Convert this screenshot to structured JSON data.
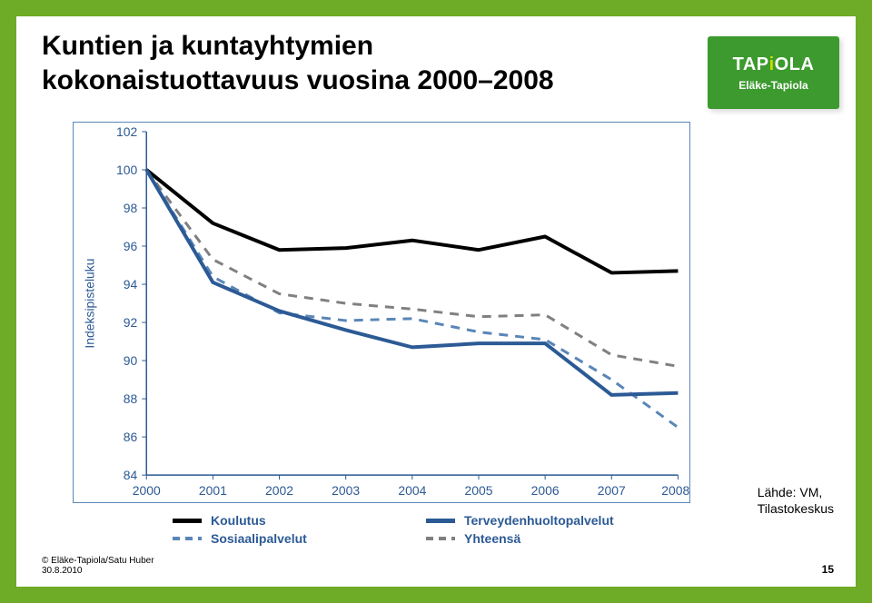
{
  "title_line1": "Kuntien ja kuntayhtymien",
  "title_line2": "kokonaistuottavuus vuosina 2000–2008",
  "logo": {
    "text": "TAPIOLA",
    "subtitle": "Eläke-Tapiola"
  },
  "chart": {
    "type": "line",
    "background_color": "#ffffff",
    "axis_color": "#2c5a95",
    "label_color": "#2c5a95",
    "label_fontsize": 14,
    "ylabel": "Indeksipisteluku",
    "ylabel_fontsize": 14,
    "xlim": [
      2000,
      2008
    ],
    "ylim": [
      84,
      102
    ],
    "ytick_step": 2,
    "yticks": [
      84,
      86,
      88,
      90,
      92,
      94,
      96,
      98,
      100,
      102
    ],
    "xticks": [
      "2000",
      "2001",
      "2002",
      "2003",
      "2004",
      "2005",
      "2006",
      "2007",
      "2008*"
    ],
    "grid": false,
    "line_width_thick": 4,
    "line_width_thin": 3,
    "series": [
      {
        "name": "Koulutus",
        "color": "#000000",
        "style": "solid",
        "width": 4,
        "values": [
          100,
          97.2,
          95.8,
          95.9,
          96.3,
          95.8,
          96.5,
          94.6,
          94.7
        ]
      },
      {
        "name": "Terveydenhuoltopalvelut",
        "color": "#2c5a95",
        "style": "solid",
        "width": 4,
        "values": [
          100,
          94.1,
          92.6,
          91.6,
          90.7,
          90.9,
          90.9,
          88.2,
          88.3
        ]
      },
      {
        "name": "Sosiaalipalvelut",
        "color": "#5a86b7",
        "style": "dashed",
        "width": 3,
        "values": [
          100,
          94.4,
          92.5,
          92.1,
          92.2,
          91.5,
          91.1,
          89.0,
          86.5
        ]
      },
      {
        "name": "Yhteensä",
        "color": "#808080",
        "style": "dashed",
        "width": 3,
        "values": [
          100,
          95.3,
          93.5,
          93.0,
          92.7,
          92.3,
          92.4,
          90.3,
          89.7
        ]
      }
    ],
    "legend": {
      "items": [
        {
          "label": "Koulutus",
          "color": "#000000",
          "style": "solid"
        },
        {
          "label": "Terveydenhuoltopalvelut",
          "color": "#2c5a95",
          "style": "solid"
        },
        {
          "label": "Sosiaalipalvelut",
          "color": "#5a86b7",
          "style": "dashed"
        },
        {
          "label": "Yhteensä",
          "color": "#808080",
          "style": "dashed"
        }
      ]
    }
  },
  "source": {
    "line1": "Lähde: VM,",
    "line2": "Tilastokeskus"
  },
  "footer": {
    "copyright": "© Eläke-Tapiola/Satu Huber",
    "date": "30.8.2010"
  },
  "page_number": "15"
}
